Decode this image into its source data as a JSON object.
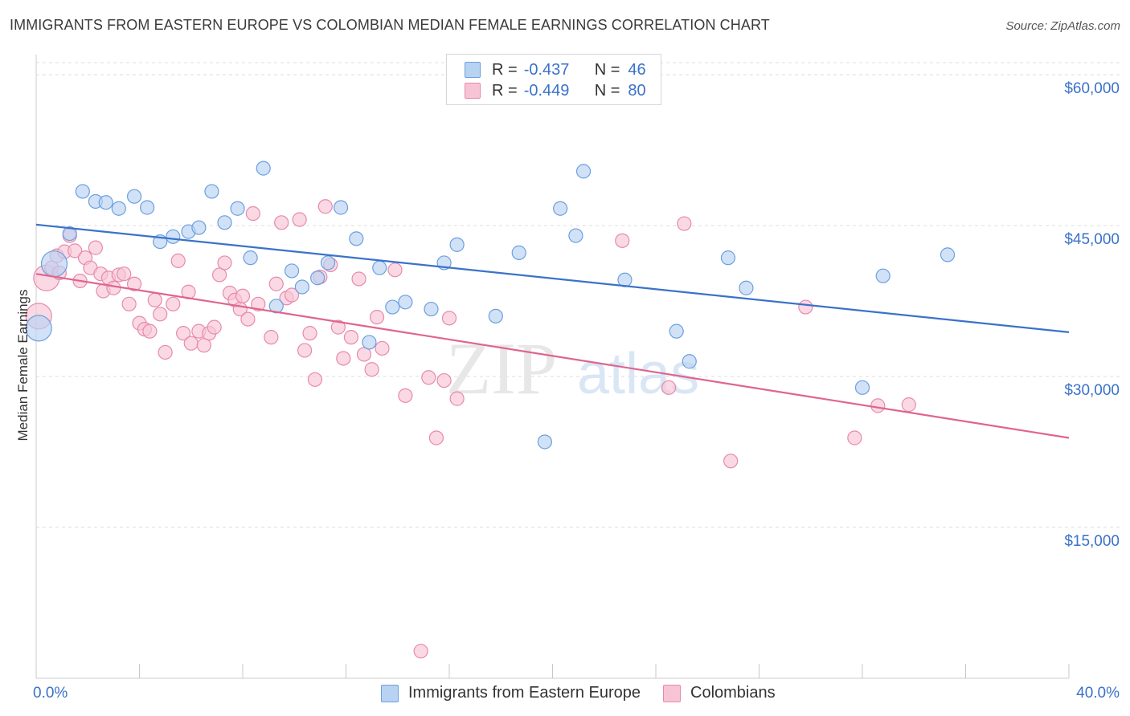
{
  "title": "IMMIGRANTS FROM EASTERN EUROPE VS COLOMBIAN MEDIAN FEMALE EARNINGS CORRELATION CHART",
  "source": "Source: ZipAtlas.com",
  "watermark": {
    "zip": "ZIP",
    "atlas": "atlas"
  },
  "legend_top": [
    {
      "r_label": "R =",
      "r_value": "-0.437",
      "n_label": "N =",
      "n_value": "46"
    },
    {
      "r_label": "R =",
      "r_value": "-0.449",
      "n_label": "N =",
      "n_value": "80"
    }
  ],
  "legend_bottom": [
    {
      "label": "Immigrants from Eastern Europe"
    },
    {
      "label": "Colombians"
    }
  ],
  "colors": {
    "blue_fill": "#b8d2f2",
    "blue_stroke": "#6b9fe0",
    "blue_line": "#3a72c9",
    "pink_fill": "#f7c4d6",
    "pink_stroke": "#e78aab",
    "pink_line": "#e0648e",
    "tick_label": "#3a72c9",
    "grid": "#dcdcdc"
  },
  "chart_data": {
    "type": "scatter",
    "title": "IMMIGRANTS FROM EASTERN EUROPE VS COLOMBIAN MEDIAN FEMALE EARNINGS CORRELATION CHART",
    "xlabel": "",
    "ylabel": "Median Female Earnings",
    "xlim": [
      0,
      40
    ],
    "ylim": [
      0,
      62000
    ],
    "x_tick_labels": [
      "0.0%",
      "40.0%"
    ],
    "y_ticks": [
      15000,
      30000,
      45000,
      60000
    ],
    "y_tick_labels": [
      "$15,000",
      "$30,000",
      "$45,000",
      "$60,000"
    ],
    "grid": true,
    "legend_position": "top-center",
    "series": [
      {
        "name": "Immigrants from Eastern Europe",
        "trend": {
          "x": [
            0,
            40
          ],
          "y": [
            45100,
            34400
          ]
        },
        "points": [
          {
            "x": 0.1,
            "y": 34800,
            "big": true
          },
          {
            "x": 0.7,
            "y": 41200,
            "big": true
          },
          {
            "x": 1.3,
            "y": 44200
          },
          {
            "x": 1.8,
            "y": 48400
          },
          {
            "x": 2.3,
            "y": 47400
          },
          {
            "x": 2.7,
            "y": 47300
          },
          {
            "x": 3.2,
            "y": 46700
          },
          {
            "x": 3.8,
            "y": 47900
          },
          {
            "x": 4.3,
            "y": 46800
          },
          {
            "x": 4.8,
            "y": 43400
          },
          {
            "x": 5.3,
            "y": 43900
          },
          {
            "x": 5.9,
            "y": 44400
          },
          {
            "x": 6.3,
            "y": 44800
          },
          {
            "x": 6.8,
            "y": 48400
          },
          {
            "x": 7.3,
            "y": 45300
          },
          {
            "x": 7.8,
            "y": 46700
          },
          {
            "x": 8.3,
            "y": 41800
          },
          {
            "x": 8.8,
            "y": 50700
          },
          {
            "x": 9.3,
            "y": 37000
          },
          {
            "x": 9.9,
            "y": 40500
          },
          {
            "x": 10.3,
            "y": 38900
          },
          {
            "x": 10.9,
            "y": 39800
          },
          {
            "x": 11.3,
            "y": 41300
          },
          {
            "x": 11.8,
            "y": 46800
          },
          {
            "x": 12.4,
            "y": 43700
          },
          {
            "x": 12.9,
            "y": 33400
          },
          {
            "x": 13.3,
            "y": 40800
          },
          {
            "x": 13.8,
            "y": 36900
          },
          {
            "x": 14.3,
            "y": 37400
          },
          {
            "x": 15.3,
            "y": 36700
          },
          {
            "x": 15.8,
            "y": 41300
          },
          {
            "x": 16.3,
            "y": 43100
          },
          {
            "x": 17.8,
            "y": 36000
          },
          {
            "x": 18.7,
            "y": 42300
          },
          {
            "x": 19.7,
            "y": 23500
          },
          {
            "x": 20.3,
            "y": 46700
          },
          {
            "x": 20.9,
            "y": 44000
          },
          {
            "x": 21.2,
            "y": 50400
          },
          {
            "x": 22.8,
            "y": 39600
          },
          {
            "x": 24.8,
            "y": 34500
          },
          {
            "x": 25.3,
            "y": 31500
          },
          {
            "x": 26.8,
            "y": 41800
          },
          {
            "x": 27.5,
            "y": 38800
          },
          {
            "x": 32.0,
            "y": 28900
          },
          {
            "x": 32.8,
            "y": 40000
          },
          {
            "x": 35.3,
            "y": 42100
          }
        ]
      },
      {
        "name": "Colombians",
        "trend": {
          "x": [
            0,
            40
          ],
          "y": [
            40200,
            23900
          ]
        },
        "points": [
          {
            "x": 0.1,
            "y": 36000,
            "big": true
          },
          {
            "x": 0.4,
            "y": 39800,
            "big": true
          },
          {
            "x": 0.6,
            "y": 40800
          },
          {
            "x": 0.8,
            "y": 42000
          },
          {
            "x": 0.9,
            "y": 40300
          },
          {
            "x": 1.1,
            "y": 42400
          },
          {
            "x": 1.3,
            "y": 44000
          },
          {
            "x": 1.5,
            "y": 42500
          },
          {
            "x": 1.7,
            "y": 39500
          },
          {
            "x": 1.9,
            "y": 41800
          },
          {
            "x": 2.1,
            "y": 40800
          },
          {
            "x": 2.3,
            "y": 42800
          },
          {
            "x": 2.5,
            "y": 40200
          },
          {
            "x": 2.6,
            "y": 38500
          },
          {
            "x": 2.8,
            "y": 39800
          },
          {
            "x": 3.0,
            "y": 38800
          },
          {
            "x": 3.2,
            "y": 40100
          },
          {
            "x": 3.4,
            "y": 40200
          },
          {
            "x": 3.6,
            "y": 37200
          },
          {
            "x": 3.8,
            "y": 39200
          },
          {
            "x": 4.0,
            "y": 35300
          },
          {
            "x": 4.2,
            "y": 34700
          },
          {
            "x": 4.4,
            "y": 34500
          },
          {
            "x": 4.6,
            "y": 37600
          },
          {
            "x": 4.8,
            "y": 36200
          },
          {
            "x": 5.0,
            "y": 32400
          },
          {
            "x": 5.3,
            "y": 37200
          },
          {
            "x": 5.5,
            "y": 41500
          },
          {
            "x": 5.7,
            "y": 34300
          },
          {
            "x": 5.9,
            "y": 38400
          },
          {
            "x": 6.0,
            "y": 33300
          },
          {
            "x": 6.3,
            "y": 34500
          },
          {
            "x": 6.5,
            "y": 33100
          },
          {
            "x": 6.7,
            "y": 34300
          },
          {
            "x": 6.9,
            "y": 34900
          },
          {
            "x": 7.1,
            "y": 40100
          },
          {
            "x": 7.3,
            "y": 41300
          },
          {
            "x": 7.5,
            "y": 38300
          },
          {
            "x": 7.7,
            "y": 37600
          },
          {
            "x": 7.9,
            "y": 36700
          },
          {
            "x": 8.0,
            "y": 38000
          },
          {
            "x": 8.2,
            "y": 35700
          },
          {
            "x": 8.4,
            "y": 46200
          },
          {
            "x": 8.6,
            "y": 37200
          },
          {
            "x": 9.1,
            "y": 33900
          },
          {
            "x": 9.3,
            "y": 39200
          },
          {
            "x": 9.5,
            "y": 45300
          },
          {
            "x": 9.7,
            "y": 37800
          },
          {
            "x": 9.9,
            "y": 38100
          },
          {
            "x": 10.2,
            "y": 45600
          },
          {
            "x": 10.4,
            "y": 32600
          },
          {
            "x": 10.6,
            "y": 34300
          },
          {
            "x": 10.8,
            "y": 29700
          },
          {
            "x": 11.0,
            "y": 39900
          },
          {
            "x": 11.2,
            "y": 46900
          },
          {
            "x": 11.4,
            "y": 41100
          },
          {
            "x": 11.7,
            "y": 34900
          },
          {
            "x": 11.9,
            "y": 31800
          },
          {
            "x": 12.2,
            "y": 33900
          },
          {
            "x": 12.5,
            "y": 39700
          },
          {
            "x": 12.7,
            "y": 32200
          },
          {
            "x": 13.0,
            "y": 30700
          },
          {
            "x": 13.2,
            "y": 35900
          },
          {
            "x": 13.4,
            "y": 32800
          },
          {
            "x": 13.9,
            "y": 40600
          },
          {
            "x": 14.3,
            "y": 28100
          },
          {
            "x": 14.9,
            "y": 2700
          },
          {
            "x": 15.2,
            "y": 29900
          },
          {
            "x": 15.5,
            "y": 23900
          },
          {
            "x": 15.8,
            "y": 29600
          },
          {
            "x": 16.0,
            "y": 35800
          },
          {
            "x": 16.3,
            "y": 27800
          },
          {
            "x": 22.7,
            "y": 43500
          },
          {
            "x": 24.5,
            "y": 28900
          },
          {
            "x": 25.1,
            "y": 45200
          },
          {
            "x": 26.9,
            "y": 21600
          },
          {
            "x": 29.8,
            "y": 36900
          },
          {
            "x": 31.7,
            "y": 23900
          },
          {
            "x": 32.6,
            "y": 27100
          },
          {
            "x": 33.8,
            "y": 27200
          }
        ]
      }
    ]
  }
}
